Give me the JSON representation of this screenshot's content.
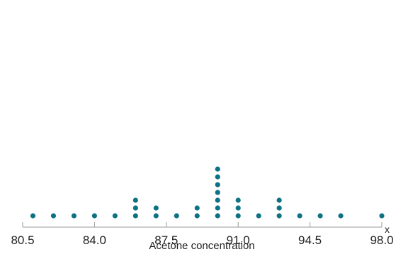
{
  "chart_data": {
    "type": "scatter",
    "subtype": "dot-plot",
    "title": "",
    "xlabel": "Acetone concentration",
    "axis_variable": "x",
    "xlim": [
      80.5,
      98.0
    ],
    "ticks": [
      {
        "value": 80.5,
        "label": "80.5"
      },
      {
        "value": 84.0,
        "label": "84.0"
      },
      {
        "value": 87.5,
        "label": "87.5"
      },
      {
        "value": 91.0,
        "label": "91.0"
      },
      {
        "value": 94.5,
        "label": "94.5"
      },
      {
        "value": 98.0,
        "label": "98.0"
      }
    ],
    "points": [
      {
        "x": 81,
        "count": 1
      },
      {
        "x": 82,
        "count": 1
      },
      {
        "x": 83,
        "count": 1
      },
      {
        "x": 84,
        "count": 1
      },
      {
        "x": 85,
        "count": 1
      },
      {
        "x": 86,
        "count": 3
      },
      {
        "x": 87,
        "count": 2
      },
      {
        "x": 88,
        "count": 1
      },
      {
        "x": 89,
        "count": 2
      },
      {
        "x": 90,
        "count": 7
      },
      {
        "x": 91,
        "count": 3
      },
      {
        "x": 92,
        "count": 1
      },
      {
        "x": 93,
        "count": 3
      },
      {
        "x": 94,
        "count": 1
      },
      {
        "x": 95,
        "count": 1
      },
      {
        "x": 96,
        "count": 1
      },
      {
        "x": 98,
        "count": 1
      }
    ],
    "grid": false,
    "legend": "none"
  },
  "colors": {
    "dot": "#0e7284",
    "axis": "#9a9a9a",
    "text": "#222222"
  }
}
